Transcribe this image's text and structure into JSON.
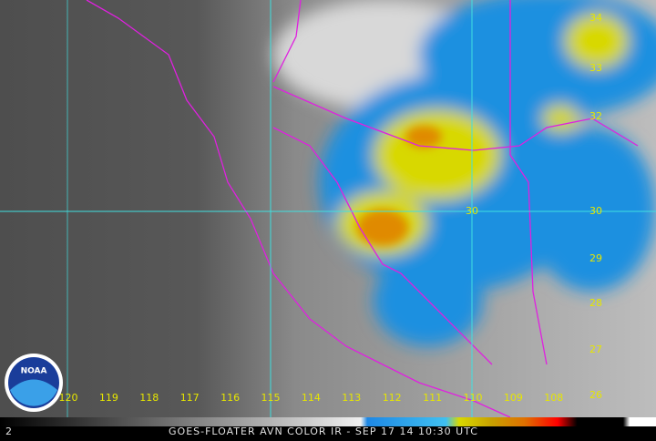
{
  "frame": "2",
  "caption": "GOES-FLOATER AVN COLOR IR - SEP 17 14 10:30 UTC",
  "logo": "NOAA",
  "longitude_labels": [
    "120",
    "119",
    "118",
    "117",
    "116",
    "115",
    "114",
    "113",
    "112",
    "111",
    "110",
    "109",
    "108"
  ],
  "latitude_labels": [
    "34",
    "33",
    "32",
    "30",
    "29",
    "28",
    "27",
    "26"
  ],
  "grid_label": "30"
}
